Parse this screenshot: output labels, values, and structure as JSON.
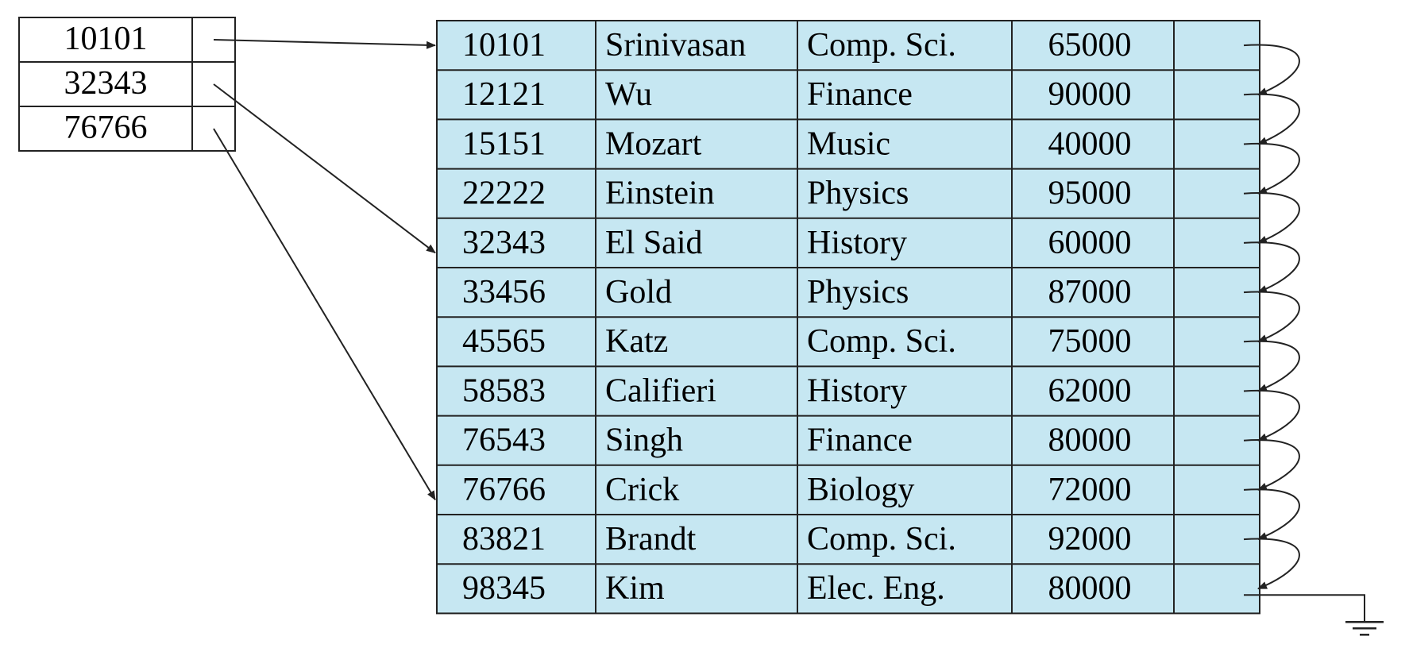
{
  "index": [
    {
      "key": "10101",
      "points_to": 0
    },
    {
      "key": "32343",
      "points_to": 4
    },
    {
      "key": "76766",
      "points_to": 9
    }
  ],
  "records": [
    [
      "10101",
      "Srinivasan",
      "Comp. Sci.",
      "65000"
    ],
    [
      "12121",
      "Wu",
      "Finance",
      "90000"
    ],
    [
      "15151",
      "Mozart",
      "Music",
      "40000"
    ],
    [
      "22222",
      "Einstein",
      "Physics",
      "95000"
    ],
    [
      "32343",
      "El Said",
      "History",
      "60000"
    ],
    [
      "33456",
      "Gold",
      "Physics",
      "87000"
    ],
    [
      "45565",
      "Katz",
      "Comp. Sci.",
      "75000"
    ],
    [
      "58583",
      "Califieri",
      "History",
      "62000"
    ],
    [
      "76543",
      "Singh",
      "Finance",
      "80000"
    ],
    [
      "76766",
      "Crick",
      "Biology",
      "72000"
    ],
    [
      "83821",
      "Brandt",
      "Comp. Sci.",
      "92000"
    ],
    [
      "98345",
      "Kim",
      "Elec. Eng.",
      "80000"
    ]
  ],
  "colors": {
    "record_fill": "#c6e7f2",
    "line": "#222222"
  }
}
